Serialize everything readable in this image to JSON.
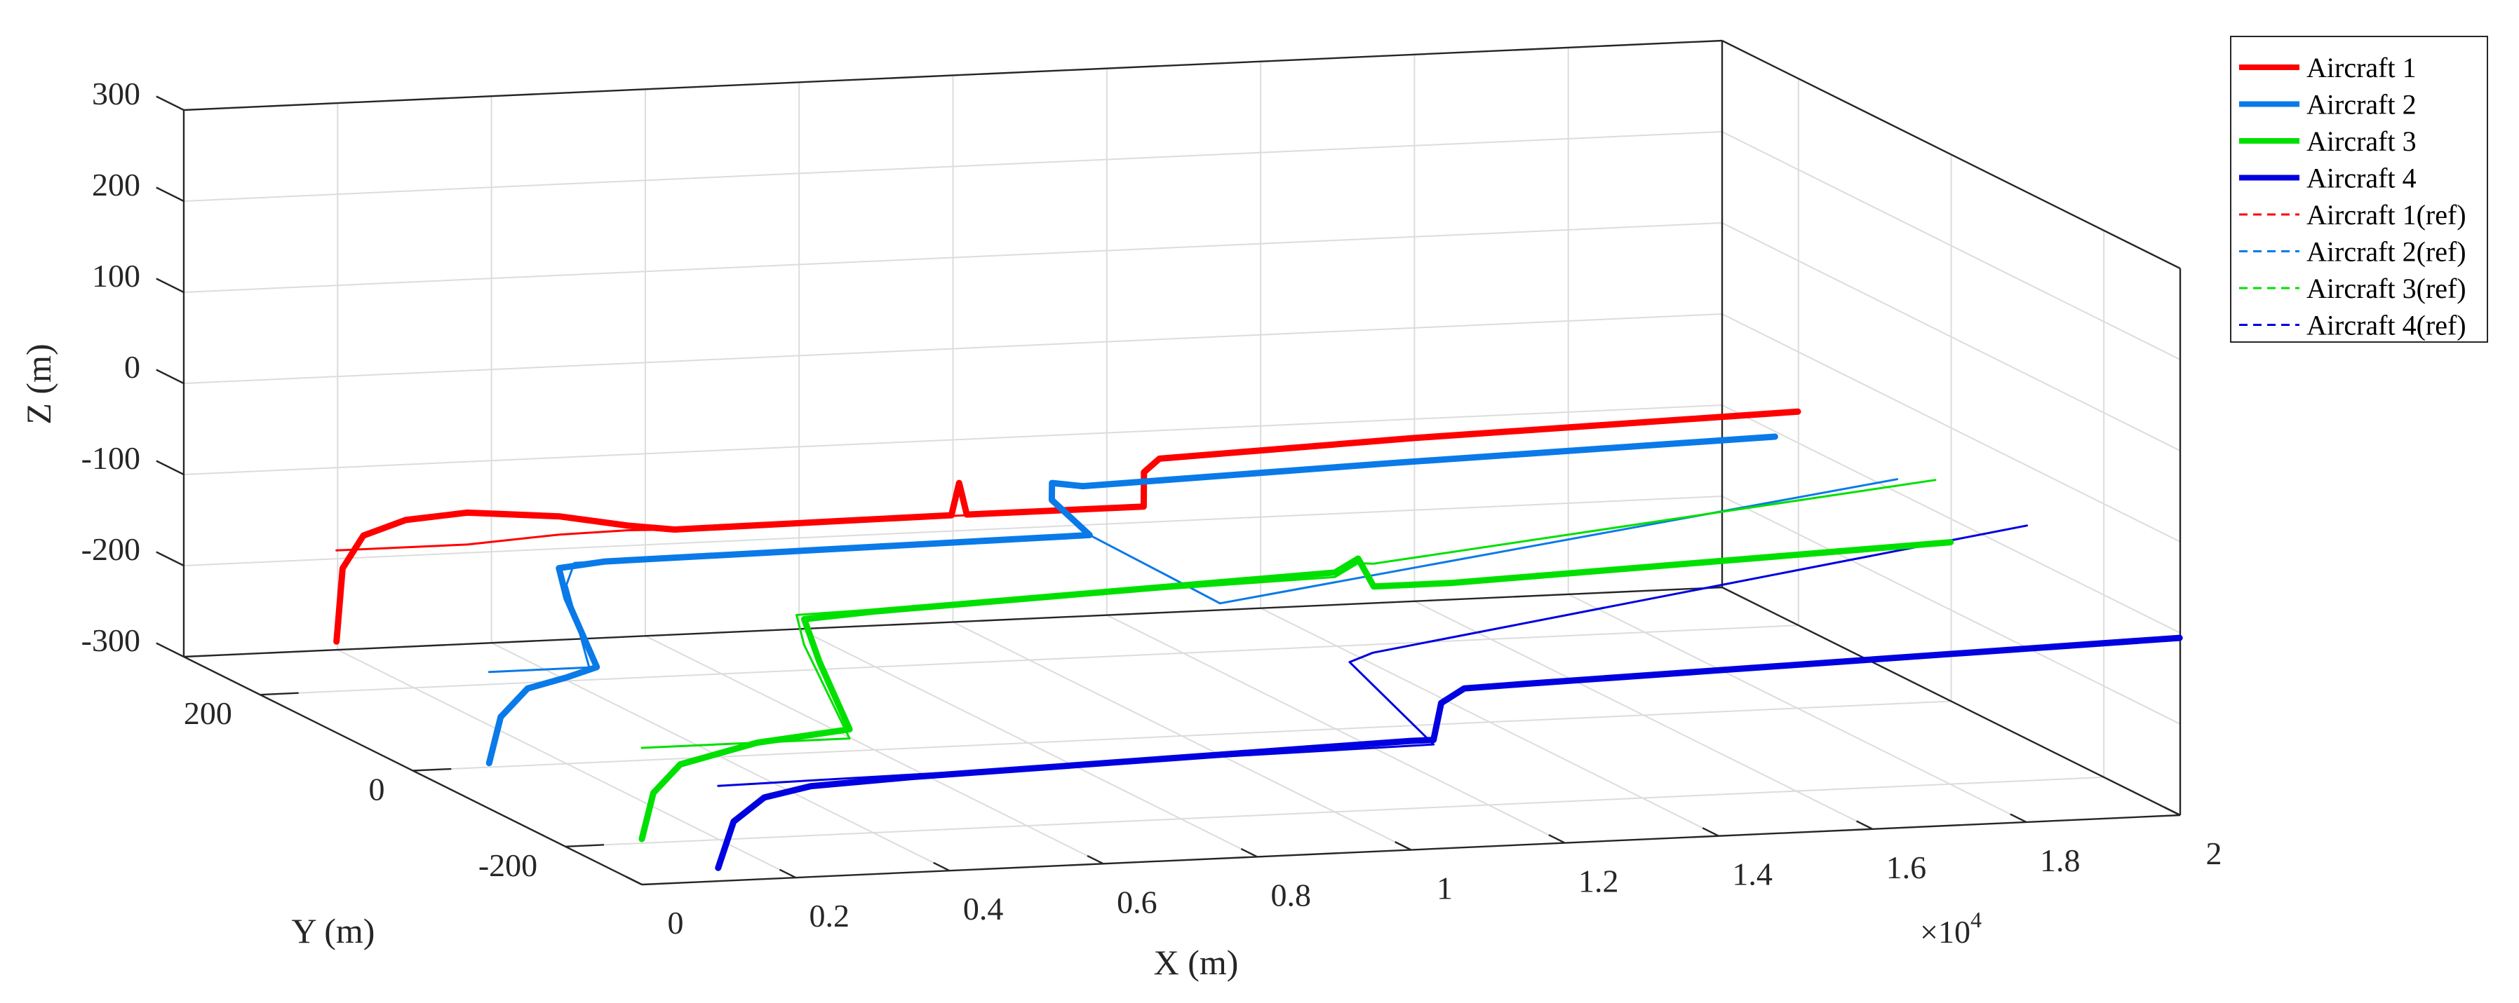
{
  "chart_data": {
    "type": "line",
    "projection": "3d",
    "xlabel": "X (m)",
    "ylabel": "Y (m)",
    "zlabel": "Z (m)",
    "x_multiplier_label": "×10",
    "x_multiplier_exponent": "4",
    "xlim": [
      0,
      20000
    ],
    "ylim": [
      -300,
      300
    ],
    "zlim": [
      -300,
      300
    ],
    "x_ticks": [
      "0",
      "0.2",
      "0.4",
      "0.6",
      "0.8",
      "1",
      "1.2",
      "1.4",
      "1.6",
      "1.8",
      "2"
    ],
    "y_ticks": [
      "-200",
      "0",
      "200"
    ],
    "z_ticks": [
      "-300",
      "-200",
      "-100",
      "0",
      "100",
      "200",
      "300"
    ],
    "grid": true,
    "legend_position": "top-right",
    "colors": {
      "aircraft1": "#ff0000",
      "aircraft2": "#0a7ae8",
      "aircraft3": "#00e000",
      "aircraft4": "#0000e0"
    },
    "series": [
      {
        "name": "Aircraft 1",
        "style": "solid",
        "color": "#ff0000",
        "points": [
          [
            0,
            100,
            -200
          ],
          [
            80,
            100,
            -120
          ],
          [
            350,
            100,
            -85
          ],
          [
            900,
            100,
            -70
          ],
          [
            1700,
            100,
            -65
          ],
          [
            2600,
            70,
            -60
          ],
          [
            3200,
            40,
            -60
          ],
          [
            3700,
            30,
            -62
          ],
          [
            7300,
            30,
            -60
          ],
          [
            7400,
            30,
            -25
          ],
          [
            7500,
            30,
            -60
          ],
          [
            9800,
            30,
            -60
          ],
          [
            10300,
            80,
            -45
          ],
          [
            10700,
            100,
            -40
          ],
          [
            14000,
            100,
            -30
          ],
          [
            19000,
            100,
            -20
          ]
        ]
      },
      {
        "name": "Aircraft 2",
        "style": "solid",
        "color": "#0a7ae8",
        "points": [
          [
            0,
            -100,
            -250
          ],
          [
            150,
            -100,
            -200
          ],
          [
            500,
            -100,
            -170
          ],
          [
            1000,
            -100,
            -160
          ],
          [
            1400,
            -100,
            -150
          ],
          [
            1600,
            -40,
            -100
          ],
          [
            1900,
            0,
            -85
          ],
          [
            2500,
            0,
            -80
          ],
          [
            8800,
            0,
            -75
          ],
          [
            9300,
            100,
            -80
          ],
          [
            9600,
            130,
            -75
          ],
          [
            10000,
            130,
            -80
          ],
          [
            14000,
            130,
            -70
          ],
          [
            19000,
            130,
            -60
          ]
        ]
      },
      {
        "name": "Aircraft 3",
        "style": "solid",
        "color": "#00e000",
        "points": [
          [
            0,
            -300,
            -250
          ],
          [
            150,
            -300,
            -200
          ],
          [
            500,
            -300,
            -170
          ],
          [
            1500,
            -300,
            -150
          ],
          [
            2700,
            -300,
            -140
          ],
          [
            3100,
            -220,
            -100
          ],
          [
            3600,
            -150,
            -85
          ],
          [
            4500,
            -150,
            -80
          ],
          [
            10500,
            -150,
            -60
          ],
          [
            11000,
            -130,
            -55
          ],
          [
            11500,
            -100,
            -100
          ],
          [
            12500,
            -100,
            -100
          ],
          [
            19000,
            -100,
            -80
          ]
        ]
      },
      {
        "name": "Aircraft 4",
        "style": "solid",
        "color": "#0000e0",
        "points": [
          [
            0,
            -400,
            -240
          ],
          [
            200,
            -400,
            -190
          ],
          [
            600,
            -400,
            -165
          ],
          [
            1200,
            -400,
            -155
          ],
          [
            2500,
            -400,
            -150
          ],
          [
            9000,
            -400,
            -135
          ],
          [
            9300,
            -400,
            -135
          ],
          [
            9400,
            -400,
            -95
          ],
          [
            9700,
            -400,
            -80
          ],
          [
            10500,
            -400,
            -78
          ],
          [
            19000,
            -400,
            -60
          ]
        ]
      },
      {
        "name": "Aircraft 1(ref)",
        "style": "dashed",
        "color": "#ff0000",
        "points": [
          [
            0,
            100,
            -100
          ],
          [
            1700,
            100,
            -100
          ],
          [
            2600,
            70,
            -80
          ],
          [
            3200,
            40,
            -65
          ],
          [
            3700,
            30,
            -62
          ],
          [
            9800,
            30,
            -60
          ],
          [
            10300,
            80,
            -45
          ],
          [
            10700,
            100,
            -40
          ],
          [
            19000,
            100,
            -20
          ]
        ]
      },
      {
        "name": "Aircraft 2(ref)",
        "style": "dashed",
        "color": "#0a7ae8",
        "points": [
          [
            0,
            -100,
            -150
          ],
          [
            1300,
            -100,
            -150
          ],
          [
            1700,
            -30,
            -90
          ],
          [
            2100,
            0,
            -80
          ],
          [
            8800,
            0,
            -75
          ],
          [
            9300,
            -50,
            -100
          ],
          [
            9700,
            -80,
            -120
          ],
          [
            19000,
            -30,
            -40
          ]
        ]
      },
      {
        "name": "Aircraft 3(ref)",
        "style": "dashed",
        "color": "#00e000",
        "points": [
          [
            0,
            -300,
            -150
          ],
          [
            2700,
            -300,
            -150
          ],
          [
            3100,
            -200,
            -90
          ],
          [
            3500,
            -150,
            -80
          ],
          [
            10500,
            -150,
            -65
          ],
          [
            11000,
            -130,
            -60
          ],
          [
            11500,
            -100,
            -75
          ],
          [
            19000,
            -80,
            -20
          ]
        ]
      },
      {
        "name": "Aircraft 4(ref)",
        "style": "dashed",
        "color": "#0000e0",
        "points": [
          [
            0,
            -400,
            -150
          ],
          [
            9300,
            -400,
            -140
          ],
          [
            9400,
            -280,
            -100
          ],
          [
            9900,
            -260,
            -100
          ],
          [
            19000,
            -200,
            -20
          ]
        ]
      }
    ]
  }
}
